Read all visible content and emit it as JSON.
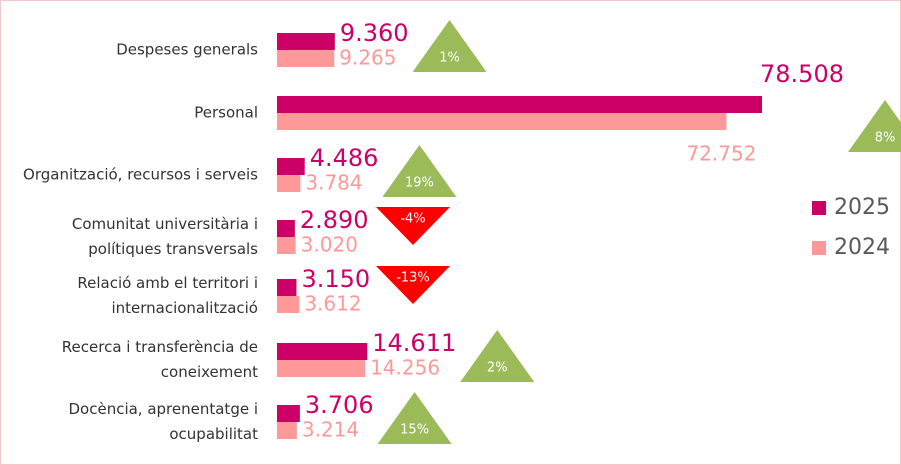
{
  "chart_data": {
    "type": "bar",
    "orientation": "horizontal",
    "categories": [
      "Despeses generals",
      "Personal",
      "Organització, recursos i serveis",
      "Comunitat universitària i\npolítiques transversals",
      "Relació amb el territori i\ninternacionalització",
      "Recerca i transferència de\nconeixement",
      "Docència, aprenentatge i\nocupabilitat"
    ],
    "series": [
      {
        "name": "2025",
        "color": "#cc0066",
        "values": [
          9360,
          78508,
          4486,
          2890,
          3150,
          14611,
          3706
        ],
        "value_labels": [
          "9.360",
          "78.508",
          "4.486",
          "2.890",
          "3.150",
          "14.611",
          "3.706"
        ]
      },
      {
        "name": "2024",
        "color": "#ff9999",
        "values": [
          9265,
          72752,
          3784,
          3020,
          3612,
          14256,
          3214
        ],
        "value_labels": [
          "9.265",
          "72.752",
          "3.784",
          "3.020",
          "3.612",
          "14.256",
          "3.214"
        ]
      }
    ],
    "changes": [
      1,
      8,
      19,
      -4,
      -13,
      2,
      15
    ],
    "change_labels": [
      "1%",
      "8%",
      "19%",
      "-4%",
      "-13%",
      "2%",
      "15%"
    ],
    "up_color": "#9bbb59",
    "down_color": "#ff0000",
    "legend": "right"
  }
}
